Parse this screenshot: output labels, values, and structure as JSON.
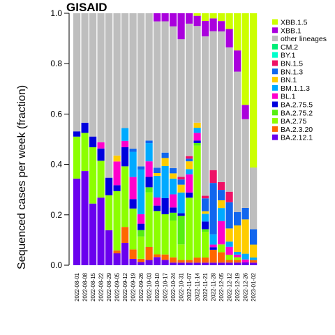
{
  "chart_data": {
    "type": "bar",
    "stacked": true,
    "title": "GISAID",
    "ylabel": "Sequenced cases per week (fraction)",
    "xlabel": "",
    "ylim": [
      0,
      1
    ],
    "yticks": [
      "0.0",
      "0.2",
      "0.4",
      "0.6",
      "0.8",
      "1.0"
    ],
    "legend_position": "top-right",
    "categories": [
      "2022-08-01",
      "2022-08-08",
      "2022-08-15",
      "2022-08-22",
      "2022-08-29",
      "2022-09-05",
      "2022-09-12",
      "2022-09-19",
      "2022-09-26",
      "2022-10-03",
      "2022-10-10",
      "2022-10-17",
      "2022-10-24",
      "2022-10-31",
      "2022-11-07",
      "2022-11-14",
      "2022-11-21",
      "2022-11-28",
      "2022-12-05",
      "2022-12-12",
      "2022-12-19",
      "2022-12-26",
      "2023-01-02"
    ],
    "series": [
      {
        "name": "BA.2.12.1",
        "color": "#6a00ee",
        "values": [
          0.33,
          0.37,
          0.23,
          0.22,
          0.1,
          0.04,
          0.07,
          0.02,
          0.01,
          0.02,
          0.03,
          0.02,
          0.01,
          0.01,
          0.01,
          0.01,
          0.01,
          0.01,
          0.01,
          0.01,
          0.01,
          0.01,
          0.01
        ]
      },
      {
        "name": "BA.2.3.20",
        "color": "#ff6600",
        "values": [
          0.0,
          0.0,
          0.0,
          0.0,
          0.0,
          0.01,
          0.05,
          0.03,
          0.01,
          0.05,
          0.01,
          0.02,
          0.02,
          0.01,
          0.01,
          0.02,
          0.02,
          0.05,
          0.04,
          0.01,
          0.01,
          0.0,
          0.01
        ]
      },
      {
        "name": "BA.2.75",
        "color": "#8cff00",
        "values": [
          0.16,
          0.15,
          0.21,
          0.12,
          0.1,
          0.2,
          0.19,
          0.13,
          0.07,
          0.21,
          0.16,
          0.15,
          0.14,
          0.06,
          0.24,
          0.44,
          0.1,
          0.0,
          0.03,
          0.02,
          0.01,
          0.0,
          0.0
        ]
      },
      {
        "name": "BA.2.75.2",
        "color": "#55ee11",
        "values": [
          0.0,
          0.0,
          0.0,
          0.0,
          0.0,
          0.0,
          0.0,
          0.0,
          0.02,
          0.02,
          0.0,
          0.0,
          0.03,
          0.11,
          0.0,
          0.01,
          0.01,
          0.0,
          0.0,
          0.0,
          0.0,
          0.0,
          0.0
        ]
      },
      {
        "name": "BA.2.75.5",
        "color": "#0000dd",
        "values": [
          0.02,
          0.04,
          0.04,
          0.04,
          0.05,
          0.02,
          0.06,
          0.03,
          0.02,
          0.04,
          0.02,
          0.06,
          0.02,
          0.01,
          0.02,
          0.01,
          0.03,
          0.01,
          0.0,
          0.0,
          0.0,
          0.0,
          0.0
        ]
      },
      {
        "name": "BL.1",
        "color": "#ff00cc",
        "values": [
          0.0,
          0.0,
          0.0,
          0.02,
          0.0,
          0.08,
          0.02,
          0.07,
          0.03,
          0.06,
          0.03,
          0.0,
          0.05,
          0.0,
          0.07,
          0.03,
          0.0,
          0.01,
          0.09,
          0.03,
          0.01,
          0.01,
          0.0
        ]
      },
      {
        "name": "BM.1.1.3",
        "color": "#00aaff",
        "values": [
          0.0,
          0.0,
          0.0,
          0.0,
          0.0,
          0.0,
          0.04,
          0.08,
          0.14,
          0.07,
          0.08,
          0.12,
          0.06,
          0.08,
          0.02,
          0.02,
          0.03,
          0.04,
          0.05,
          0.02,
          0.01,
          0.02,
          0.01
        ]
      },
      {
        "name": "BN.1",
        "color": "#ffcc00",
        "values": [
          0.0,
          0.0,
          0.0,
          0.0,
          0.0,
          0.02,
          0.0,
          0.0,
          0.0,
          0.0,
          0.01,
          0.03,
          0.02,
          0.03,
          0.03,
          0.02,
          0.01,
          0.0,
          0.03,
          0.05,
          0.1,
          0.12,
          0.05
        ]
      },
      {
        "name": "BN.1.3",
        "color": "#1166ee",
        "values": [
          0.0,
          0.0,
          0.0,
          0.0,
          0.0,
          0.0,
          0.0,
          0.01,
          0.01,
          0.01,
          0.02,
          0.02,
          0.02,
          0.02,
          0.01,
          0.0,
          0.05,
          0.2,
          0.04,
          0.1,
          0.05,
          0.04,
          0.06
        ]
      },
      {
        "name": "BN.1.5",
        "color": "#ee1166",
        "values": [
          0.0,
          0.0,
          0.0,
          0.0,
          0.0,
          0.0,
          0.0,
          0.0,
          0.0,
          0.0,
          0.0,
          0.0,
          0.0,
          0.01,
          0.01,
          0.0,
          0.01,
          0.05,
          0.03,
          0.04,
          0.0,
          0.0,
          0.0
        ]
      },
      {
        "name": "BY.1",
        "color": "#00ffcc",
        "values": [
          0.0,
          0.0,
          0.0,
          0.0,
          0.0,
          0.0,
          0.0,
          0.0,
          0.0,
          0.0,
          0.0,
          0.0,
          0.0,
          0.0,
          0.0,
          0.0,
          0.0,
          0.0,
          0.0,
          0.0,
          0.0,
          0.0,
          0.0
        ]
      },
      {
        "name": "CM.2",
        "color": "#00ee77",
        "values": [
          0.0,
          0.0,
          0.0,
          0.0,
          0.0,
          0.0,
          0.0,
          0.0,
          0.0,
          0.0,
          0.0,
          0.0,
          0.0,
          0.0,
          0.0,
          0.0,
          0.0,
          0.0,
          0.0,
          0.0,
          0.0,
          0.0,
          0.0
        ]
      },
      {
        "name": "other lineages",
        "color": "#bebebe",
        "values": [
          0.45,
          0.43,
          0.46,
          0.42,
          0.47,
          0.48,
          0.36,
          0.43,
          0.48,
          0.49,
          0.54,
          0.49,
          0.54,
          0.53,
          0.51,
          0.38,
          0.62,
          0.54,
          0.58,
          0.55,
          0.53,
          0.31,
          0.24
        ]
      },
      {
        "name": "XBB.1",
        "color": "#aa00dd",
        "values": [
          0.0,
          0.0,
          0.0,
          0.0,
          0.0,
          0.0,
          0.0,
          0.0,
          0.0,
          0.0,
          0.03,
          0.03,
          0.05,
          0.1,
          0.04,
          0.04,
          0.06,
          0.05,
          0.04,
          0.07,
          0.08,
          0.05,
          0.0
        ]
      },
      {
        "name": "XBB.1.5",
        "color": "#ccff00",
        "values": [
          0.0,
          0.0,
          0.0,
          0.0,
          0.0,
          0.0,
          0.0,
          0.0,
          0.0,
          0.0,
          0.0,
          0.0,
          0.0,
          0.0,
          0.0,
          0.01,
          0.03,
          0.02,
          0.03,
          0.06,
          0.14,
          0.32,
          0.6
        ]
      }
    ]
  }
}
